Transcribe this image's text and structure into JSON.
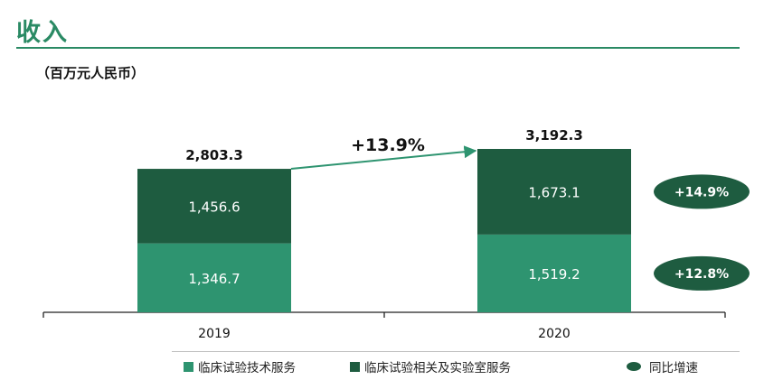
{
  "title": "收入",
  "unit": "（百万元人民币）",
  "colors": {
    "title": "#2a8a64",
    "clinical_trial_services": "#2e9470",
    "clinical_related_lab_services": "#1e5c40",
    "growth_badge": "#1e5c40"
  },
  "chart_data": {
    "type": "bar",
    "stacked": true,
    "categories": [
      "2019",
      "2020"
    ],
    "series": [
      {
        "name": "临床试验技术服务",
        "values": [
          1346.7,
          1519.2
        ],
        "labels": [
          "1,346.7",
          "1,519.2"
        ]
      },
      {
        "name": "临床试验相关及实验室服务",
        "values": [
          1456.6,
          1673.1
        ],
        "labels": [
          "1,456.6",
          "1,673.1"
        ]
      }
    ],
    "totals": [
      "2,803.3",
      "3,192.3"
    ],
    "overall_growth": "+13.9%",
    "series_growth": [
      "+12.8%",
      "+14.9%"
    ],
    "legend": {
      "items": [
        "临床试验技术服务",
        "临床试验相关及实验室服务",
        "同比增速"
      ],
      "position": "bottom"
    },
    "grid": false
  }
}
